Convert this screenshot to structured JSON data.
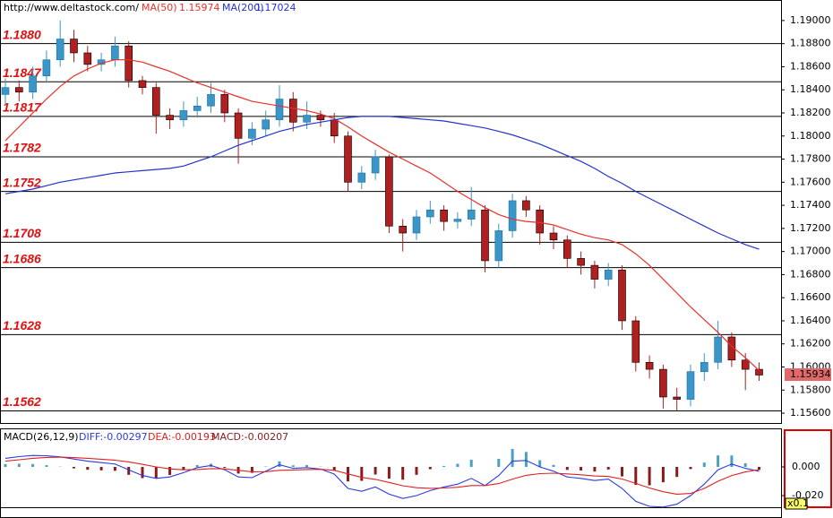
{
  "chart_data": [
    {
      "type": "candlestick",
      "title": "http://www.deltastock.com/",
      "ohlc": {
        "open": [
          1.1836,
          1.1842,
          1.1838,
          1.1852,
          1.1866,
          1.1884,
          1.1872,
          1.1862,
          1.1866,
          1.1878,
          1.1848,
          1.1842,
          1.1818,
          1.1814,
          1.1822,
          1.1826,
          1.1836,
          1.182,
          1.1798,
          1.1806,
          1.1814,
          1.1832,
          1.1812,
          1.1818,
          1.1814,
          1.18,
          1.176,
          1.1768,
          1.1782,
          1.1722,
          1.1716,
          1.173,
          1.1736,
          1.1726,
          1.1728,
          1.1736,
          1.1692,
          1.1718,
          1.1744,
          1.1736,
          1.1716,
          1.171,
          1.1694,
          1.1688,
          1.1676,
          1.1684,
          1.164,
          1.1604,
          1.1598,
          1.1574,
          1.1572,
          1.1596,
          1.1604,
          1.1626,
          1.1606,
          1.1598
        ],
        "high": [
          1.185,
          1.1848,
          1.186,
          1.1874,
          1.19,
          1.1892,
          1.1878,
          1.1872,
          1.1886,
          1.1882,
          1.1852,
          1.1846,
          1.1824,
          1.183,
          1.1834,
          1.1846,
          1.184,
          1.1824,
          1.1812,
          1.1822,
          1.1844,
          1.1838,
          1.183,
          1.1822,
          1.182,
          1.1804,
          1.1774,
          1.1788,
          1.1784,
          1.1728,
          1.1736,
          1.1744,
          1.174,
          1.1734,
          1.1756,
          1.174,
          1.1724,
          1.175,
          1.1748,
          1.174,
          1.1722,
          1.1714,
          1.17,
          1.1692,
          1.169,
          1.1688,
          1.1644,
          1.161,
          1.1602,
          1.1582,
          1.1602,
          1.1612,
          1.164,
          1.163,
          1.1612,
          1.1604
        ],
        "low": [
          1.1826,
          1.183,
          1.1832,
          1.1846,
          1.186,
          1.1864,
          1.1856,
          1.1856,
          1.186,
          1.1842,
          1.1836,
          1.1802,
          1.1806,
          1.1808,
          1.1816,
          1.182,
          1.1812,
          1.1776,
          1.1792,
          1.18,
          1.1808,
          1.1804,
          1.1806,
          1.1808,
          1.1794,
          1.1752,
          1.1754,
          1.1762,
          1.1716,
          1.17,
          1.171,
          1.1724,
          1.1718,
          1.172,
          1.1722,
          1.1682,
          1.1686,
          1.1712,
          1.173,
          1.1706,
          1.1702,
          1.1686,
          1.168,
          1.1668,
          1.167,
          1.1632,
          1.1596,
          1.159,
          1.1564,
          1.1562,
          1.1566,
          1.1588,
          1.1598,
          1.16,
          1.158,
          1.1588
        ],
        "close": [
          1.1842,
          1.1838,
          1.1852,
          1.1866,
          1.1884,
          1.1872,
          1.1862,
          1.1866,
          1.1878,
          1.1848,
          1.1842,
          1.1818,
          1.1814,
          1.1822,
          1.1826,
          1.1836,
          1.182,
          1.1798,
          1.1806,
          1.1814,
          1.1832,
          1.1812,
          1.1818,
          1.1814,
          1.18,
          1.176,
          1.1768,
          1.1782,
          1.1722,
          1.1716,
          1.173,
          1.1736,
          1.1726,
          1.1728,
          1.1736,
          1.1692,
          1.1718,
          1.1744,
          1.1736,
          1.1716,
          1.171,
          1.1694,
          1.1688,
          1.1676,
          1.1684,
          1.164,
          1.1604,
          1.1598,
          1.1574,
          1.1572,
          1.1596,
          1.1604,
          1.1626,
          1.1606,
          1.1598,
          1.1593
        ],
        "up_color": "#3a96c8",
        "down_color": "#b02020"
      },
      "series": [
        {
          "name": "MA(50)",
          "value_label": "1.15974",
          "color": "#e8302a",
          "values": [
            1.1796,
            1.1808,
            1.182,
            1.1832,
            1.1843,
            1.1852,
            1.1858,
            1.1863,
            1.1866,
            1.1866,
            1.1864,
            1.186,
            1.1856,
            1.1851,
            1.1846,
            1.1842,
            1.1838,
            1.1834,
            1.183,
            1.1828,
            1.1826,
            1.1824,
            1.1822,
            1.1819,
            1.1815,
            1.1808,
            1.18,
            1.1793,
            1.1786,
            1.178,
            1.1774,
            1.1768,
            1.176,
            1.1752,
            1.1745,
            1.1738,
            1.1732,
            1.1728,
            1.1726,
            1.1725,
            1.1723,
            1.1719,
            1.1715,
            1.1712,
            1.171,
            1.1706,
            1.1698,
            1.1688,
            1.1676,
            1.1664,
            1.1652,
            1.1641,
            1.163,
            1.1618,
            1.1608,
            1.1597
          ]
        },
        {
          "name": "MA(200)",
          "value_label": "1.17024",
          "color": "#2233cc",
          "values": [
            1.175,
            1.1752,
            1.1754,
            1.1757,
            1.176,
            1.1762,
            1.1764,
            1.1766,
            1.1768,
            1.1769,
            1.177,
            1.1771,
            1.1772,
            1.1774,
            1.1778,
            1.1782,
            1.1787,
            1.1792,
            1.1796,
            1.18,
            1.1804,
            1.1807,
            1.181,
            1.1812,
            1.1814,
            1.1816,
            1.1817,
            1.1817,
            1.1817,
            1.1816,
            1.1815,
            1.1814,
            1.1813,
            1.1811,
            1.1809,
            1.1807,
            1.1804,
            1.1801,
            1.1797,
            1.1793,
            1.1788,
            1.1783,
            1.1778,
            1.1772,
            1.1765,
            1.1759,
            1.1752,
            1.1746,
            1.174,
            1.1734,
            1.1728,
            1.1722,
            1.1716,
            1.1711,
            1.1706,
            1.1702
          ]
        }
      ],
      "levels": [
        {
          "value": 1.188,
          "label": "1.1880"
        },
        {
          "value": 1.1847,
          "label": "1.1847"
        },
        {
          "value": 1.1817,
          "label": "1.1817"
        },
        {
          "value": 1.1782,
          "label": "1.1782"
        },
        {
          "value": 1.1752,
          "label": "1.1752"
        },
        {
          "value": 1.1708,
          "label": "1.1708"
        },
        {
          "value": 1.1686,
          "label": "1.1686"
        },
        {
          "value": 1.1628,
          "label": "1.1628"
        },
        {
          "value": 1.1562,
          "label": "1.1562"
        }
      ],
      "last_price": {
        "value": 1.15934,
        "label": "1.15934"
      },
      "ylim": [
        1.15515,
        1.1917
      ],
      "yticks": [
        {
          "value": 1.156,
          "label": "1.15600"
        },
        {
          "value": 1.158,
          "label": "1.15800"
        },
        {
          "value": 1.16,
          "label": "1.16000"
        },
        {
          "value": 1.162,
          "label": "1.16200"
        },
        {
          "value": 1.164,
          "label": "1.16400"
        },
        {
          "value": 1.166,
          "label": "1.16600"
        },
        {
          "value": 1.168,
          "label": "1.16800"
        },
        {
          "value": 1.17,
          "label": "1.17000"
        },
        {
          "value": 1.172,
          "label": "1.17200"
        },
        {
          "value": 1.174,
          "label": "1.17400"
        },
        {
          "value": 1.176,
          "label": "1.17600"
        },
        {
          "value": 1.178,
          "label": "1.17800"
        },
        {
          "value": 1.18,
          "label": "1.18000"
        },
        {
          "value": 1.182,
          "label": "1.18200"
        },
        {
          "value": 1.184,
          "label": "1.18400"
        },
        {
          "value": 1.186,
          "label": "1.18600"
        },
        {
          "value": 1.188,
          "label": "1.18800"
        },
        {
          "value": 1.19,
          "label": "1.19000"
        }
      ]
    },
    {
      "type": "macd",
      "title": "MACD(26,12,9)",
      "series": [
        {
          "name": "DIFF:-0.00297",
          "color": "#2a3ae0",
          "values": [
            0.006,
            0.0072,
            0.008,
            0.0078,
            0.007,
            0.0055,
            0.004,
            0.003,
            0.002,
            -0.002,
            -0.006,
            -0.008,
            -0.007,
            -0.004,
            -0.0005,
            0.001,
            -0.002,
            -0.007,
            -0.0075,
            -0.003,
            0.0015,
            -0.001,
            -0.0005,
            -0.0015,
            -0.005,
            -0.015,
            -0.017,
            -0.014,
            -0.019,
            -0.022,
            -0.02,
            -0.0165,
            -0.014,
            -0.012,
            -0.008,
            -0.013,
            -0.006,
            0.004,
            0.0045,
            0.0,
            -0.003,
            -0.007,
            -0.008,
            -0.0095,
            -0.0085,
            -0.015,
            -0.024,
            -0.0275,
            -0.028,
            -0.026,
            -0.02,
            -0.012,
            -0.002,
            0.002,
            -0.001,
            -0.003
          ]
        },
        {
          "name": "DEA:-0.00193",
          "color": "#e02020",
          "values": [
            0.004,
            0.005,
            0.006,
            0.0066,
            0.0068,
            0.0065,
            0.006,
            0.0054,
            0.0047,
            0.0035,
            0.0018,
            0.0,
            -0.0014,
            -0.002,
            -0.0018,
            -0.0012,
            -0.0014,
            -0.0024,
            -0.0034,
            -0.0033,
            -0.0024,
            -0.0021,
            -0.0018,
            -0.0017,
            -0.0024,
            -0.0049,
            -0.0073,
            -0.0087,
            -0.0108,
            -0.0131,
            -0.0145,
            -0.0149,
            -0.0147,
            -0.0142,
            -0.013,
            -0.013,
            -0.0116,
            -0.0085,
            -0.0059,
            -0.0047,
            -0.0044,
            -0.0049,
            -0.0055,
            -0.0063,
            -0.0067,
            -0.0084,
            -0.0115,
            -0.0147,
            -0.0173,
            -0.019,
            -0.0185,
            -0.015,
            -0.01,
            -0.006,
            -0.0035,
            -0.0019
          ]
        }
      ],
      "bars": {
        "name": "MACD:-0.00207",
        "up_color": "#4aa0c0",
        "down_color": "#8b1a1a",
        "values": [
          0.002,
          0.0022,
          0.002,
          0.0012,
          0.0002,
          -0.001,
          -0.002,
          -0.0024,
          -0.0027,
          -0.0055,
          -0.0078,
          -0.008,
          -0.0056,
          -0.002,
          0.0013,
          0.0022,
          -0.0006,
          -0.0046,
          -0.0041,
          0.0003,
          0.0039,
          0.0011,
          0.0013,
          0.0002,
          -0.0026,
          -0.0101,
          -0.0097,
          -0.0053,
          -0.0082,
          -0.0089,
          -0.0055,
          -0.0016,
          0.0007,
          0.0022,
          0.005,
          0.0,
          0.0056,
          0.0125,
          0.0104,
          0.0047,
          0.0014,
          -0.0021,
          -0.0025,
          -0.0032,
          -0.0018,
          -0.0066,
          -0.0125,
          -0.0128,
          -0.0107,
          -0.007,
          -0.0015,
          0.003,
          0.008,
          0.008,
          0.0025,
          -0.0021
        ]
      },
      "scale_label": "x0.1",
      "ylim": [
        -0.0281,
        0.0256
      ],
      "yticks": [
        {
          "value": 0,
          "label": "0.000"
        },
        {
          "value": -0.02,
          "label": "-0.020"
        }
      ]
    }
  ]
}
